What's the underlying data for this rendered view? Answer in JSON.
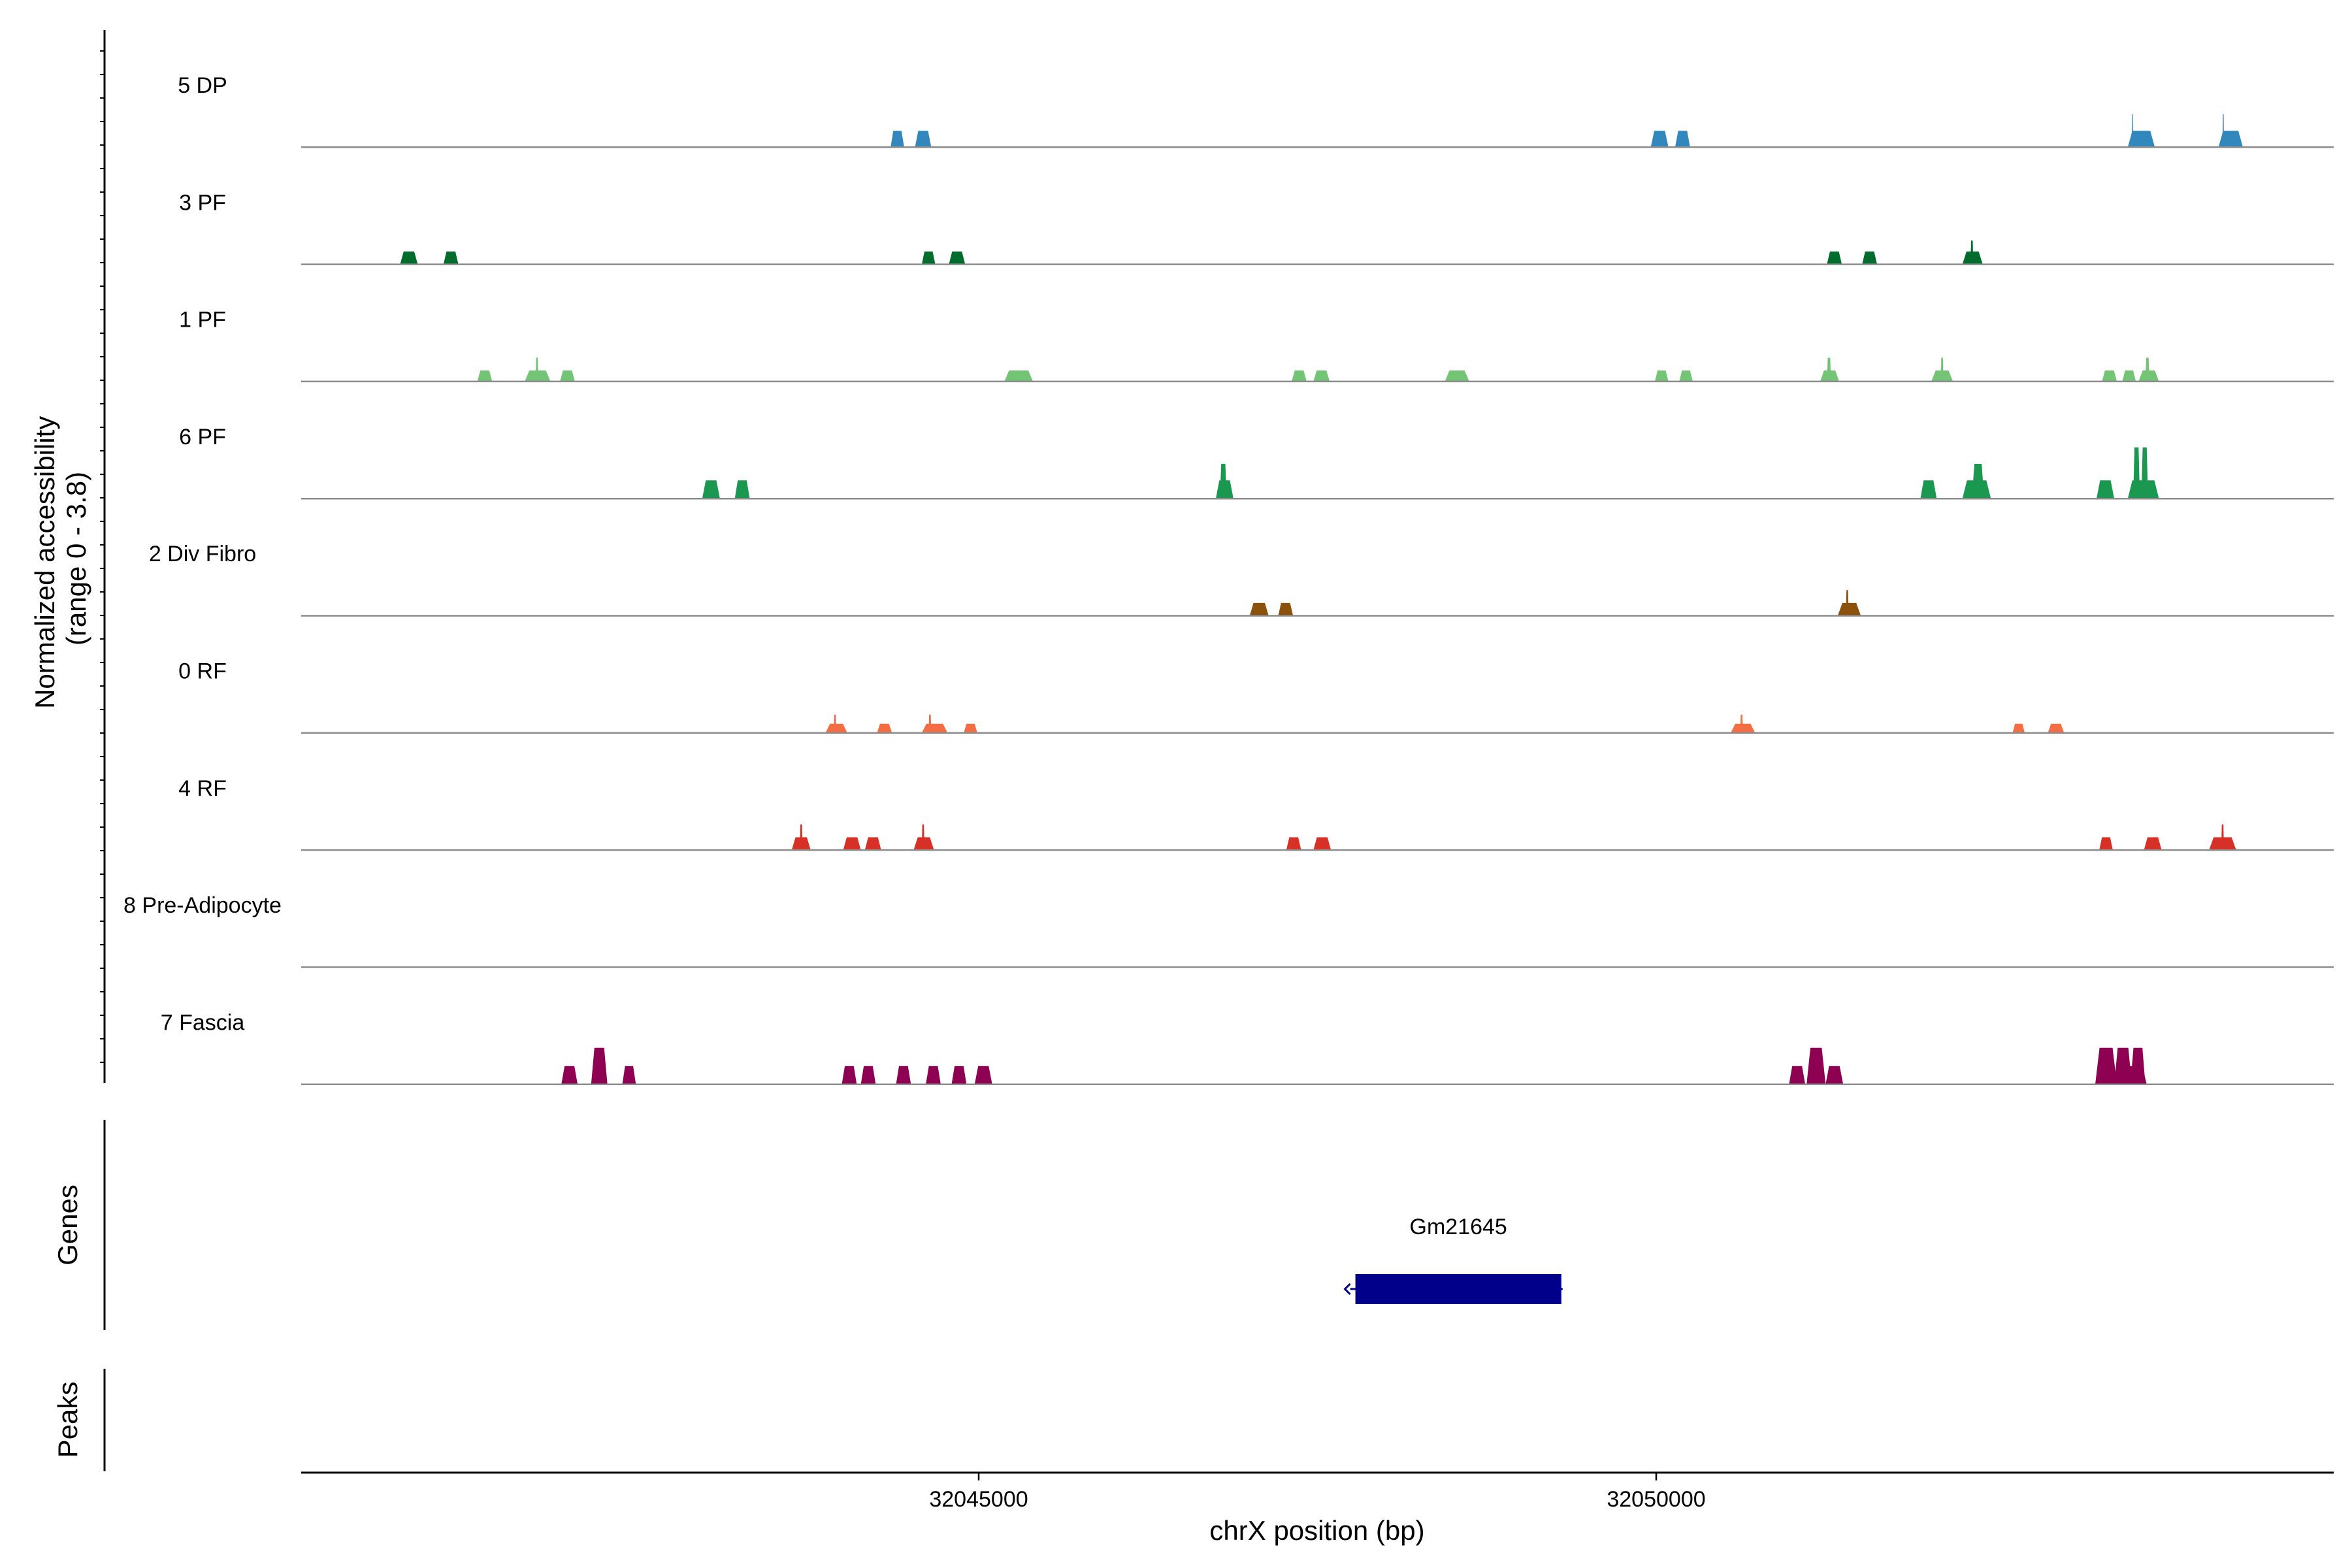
{
  "chart_data": {
    "type": "area",
    "title": "",
    "xlabel": "chrX position (bp)",
    "xlim": [
      32040000,
      32055000
    ],
    "x_ticks": [
      32045000,
      32050000
    ],
    "x_tick_labels": [
      "32045000",
      "32050000"
    ],
    "ylabel": "Normalized accessibility\n(range 0 - 3.8)",
    "ylabel_lines": [
      "Normalized accessibility",
      "(range 0 - 3.8)"
    ],
    "ylim": [
      0,
      3.8
    ],
    "colors": {
      "5 DP": "#3288bd",
      "3 PF": "#006d2c",
      "1 PF": "#74c476",
      "6 PF": "#1a9850",
      "2 Div Fibro": "#8c510a",
      "0 RF": "#f46d43",
      "4 RF": "#d73027",
      "8 Pre-Adipocyte": "#bdbdbd",
      "7 Fascia": "#8e0152"
    },
    "series": [
      {
        "name": "5 DP",
        "peaks": [
          [
            32044350,
            32044450,
            1.8
          ],
          [
            32044530,
            32044650,
            1.8
          ],
          [
            32049960,
            32050090,
            1.8
          ],
          [
            32050140,
            32050250,
            1.8
          ],
          [
            32053480,
            32053680,
            1.8
          ],
          [
            32053510,
            32053520,
            3.6
          ],
          [
            32054150,
            32054330,
            1.8
          ],
          [
            32054180,
            32054190,
            3.6
          ]
        ]
      },
      {
        "name": "3 PF",
        "peaks": [
          [
            32040730,
            32040860,
            1.4
          ],
          [
            32041050,
            32041160,
            1.4
          ],
          [
            32044580,
            32044680,
            1.4
          ],
          [
            32044780,
            32044900,
            1.4
          ],
          [
            32051260,
            32051370,
            1.4
          ],
          [
            32051520,
            32051630,
            1.4
          ],
          [
            32052260,
            32052410,
            1.4
          ],
          [
            32052320,
            32052340,
            2.6
          ]
        ]
      },
      {
        "name": "1 PF",
        "peaks": [
          [
            32041300,
            32041410,
            1.2
          ],
          [
            32041650,
            32041840,
            1.2
          ],
          [
            32041730,
            32041750,
            2.6
          ],
          [
            32041910,
            32042020,
            1.2
          ],
          [
            32045190,
            32045400,
            1.2
          ],
          [
            32047310,
            32047420,
            1.2
          ],
          [
            32047470,
            32047590,
            1.2
          ],
          [
            32048440,
            32048620,
            1.2
          ],
          [
            32049990,
            32050090,
            1.2
          ],
          [
            32050170,
            32050270,
            1.2
          ],
          [
            32051210,
            32051350,
            1.2
          ],
          [
            32051260,
            32051290,
            2.6
          ],
          [
            32052030,
            32052190,
            1.2
          ],
          [
            32052100,
            32052120,
            2.6
          ],
          [
            32053290,
            32053400,
            1.2
          ],
          [
            32053440,
            32053540,
            1.2
          ],
          [
            32053560,
            32053710,
            1.2
          ],
          [
            32053610,
            32053640,
            2.6
          ]
        ]
      },
      {
        "name": "6 PF",
        "peaks": [
          [
            32042960,
            32043090,
            2.0
          ],
          [
            32043200,
            32043310,
            2.0
          ],
          [
            32046750,
            32046880,
            2.0
          ],
          [
            32046780,
            32046830,
            3.8
          ],
          [
            32051950,
            32052070,
            2.0
          ],
          [
            32052260,
            32052470,
            2.0
          ],
          [
            32052330,
            32052420,
            3.8
          ],
          [
            32053250,
            32053380,
            2.0
          ],
          [
            32053480,
            32053710,
            2.0
          ],
          [
            32053520,
            32053570,
            5.6
          ],
          [
            32053580,
            32053630,
            5.6
          ]
        ]
      },
      {
        "name": "2 Div Fibro",
        "peaks": [
          [
            32047000,
            32047140,
            1.4
          ],
          [
            32047210,
            32047320,
            1.4
          ],
          [
            32051340,
            32051510,
            1.4
          ],
          [
            32051400,
            32051420,
            2.8
          ]
        ]
      },
      {
        "name": "0 RF",
        "peaks": [
          [
            32043870,
            32044030,
            1.0
          ],
          [
            32043930,
            32043950,
            2.0
          ],
          [
            32044250,
            32044360,
            1.0
          ],
          [
            32044580,
            32044770,
            1.0
          ],
          [
            32044630,
            32044650,
            2.0
          ],
          [
            32044890,
            32044990,
            1.0
          ],
          [
            32050550,
            32050730,
            1.0
          ],
          [
            32050620,
            32050640,
            2.0
          ],
          [
            32052630,
            32052720,
            1.0
          ],
          [
            32052890,
            32053010,
            1.0
          ]
        ]
      },
      {
        "name": "4 RF",
        "peaks": [
          [
            32043620,
            32043760,
            1.4
          ],
          [
            32043680,
            32043700,
            2.8
          ],
          [
            32044000,
            32044130,
            1.4
          ],
          [
            32044160,
            32044280,
            1.4
          ],
          [
            32044520,
            32044670,
            1.4
          ],
          [
            32044580,
            32044600,
            2.8
          ],
          [
            32047270,
            32047380,
            1.4
          ],
          [
            32047470,
            32047600,
            1.4
          ],
          [
            32053270,
            32053370,
            1.4
          ],
          [
            32053600,
            32053730,
            1.4
          ],
          [
            32054080,
            32054280,
            1.4
          ],
          [
            32054170,
            32054190,
            2.8
          ]
        ]
      },
      {
        "name": "8 Pre-Adipocyte",
        "peaks": []
      },
      {
        "name": "7 Fascia",
        "peaks": [
          [
            32041920,
            32042040,
            2.0
          ],
          [
            32042140,
            32042260,
            4.0
          ],
          [
            32042370,
            32042470,
            2.0
          ],
          [
            32043990,
            32044100,
            2.0
          ],
          [
            32044130,
            32044240,
            2.0
          ],
          [
            32044390,
            32044500,
            2.0
          ],
          [
            32044610,
            32044720,
            2.0
          ],
          [
            32044800,
            32044910,
            2.0
          ],
          [
            32044970,
            32045100,
            2.0
          ],
          [
            32050980,
            32051100,
            2.0
          ],
          [
            32051110,
            32051250,
            4.0
          ],
          [
            32051250,
            32051380,
            2.0
          ],
          [
            32053240,
            32053400,
            4.0
          ],
          [
            32053240,
            32053380,
            2.0
          ],
          [
            32053380,
            32053510,
            4.0
          ],
          [
            32053500,
            32053610,
            4.0
          ],
          [
            32053380,
            32053620,
            2.0
          ]
        ]
      }
    ],
    "genes_track_label": "Genes",
    "genes": [
      {
        "name": "Gm21645",
        "start": 32047780,
        "end": 32049300,
        "strand": "-",
        "color": "#00008b"
      }
    ],
    "peaks_track_label": "Peaks",
    "peaks_track": []
  }
}
